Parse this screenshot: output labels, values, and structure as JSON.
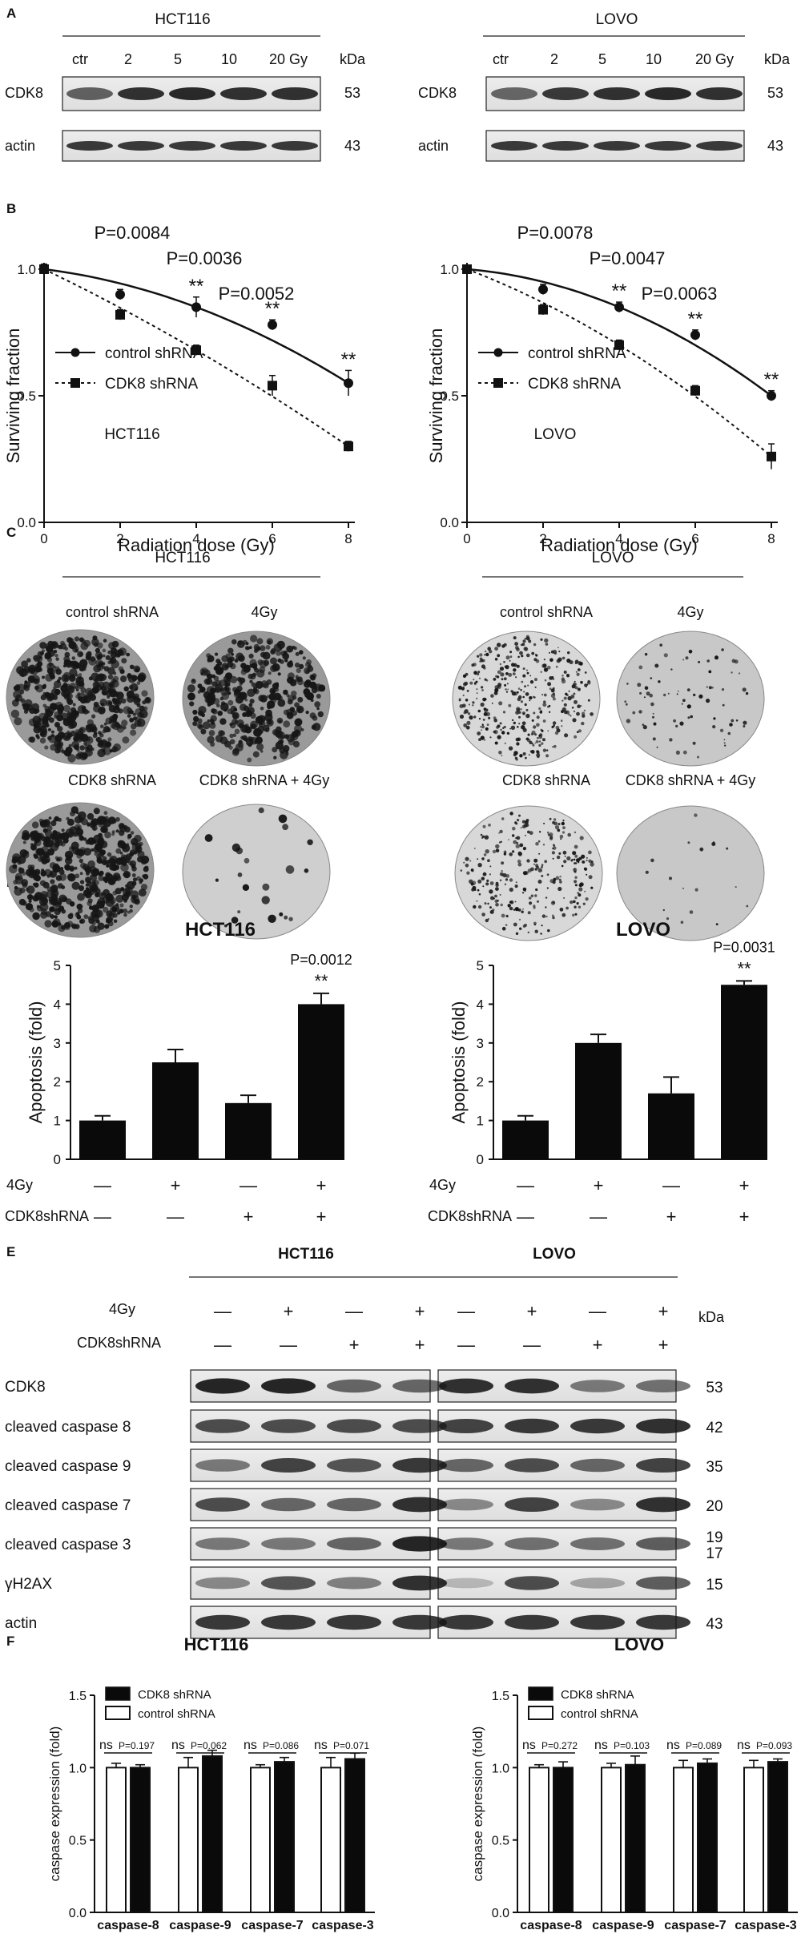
{
  "panel_labels": [
    "A",
    "B",
    "C",
    "D",
    "E",
    "F"
  ],
  "blot_A": {
    "left": {
      "cell": "HCT116",
      "doses": [
        "ctr",
        "2",
        "5",
        "10",
        "20 Gy"
      ],
      "kda_header": "kDa",
      "rows": [
        {
          "label": "CDK8",
          "kda": "53"
        },
        {
          "label": "actin",
          "kda": "43"
        }
      ]
    },
    "right": {
      "cell": "LOVO",
      "doses": [
        "ctr",
        "2",
        "5",
        "10",
        "20 Gy"
      ],
      "kda_header": "kDa",
      "rows": [
        {
          "label": "CDK8",
          "kda": "53"
        },
        {
          "label": "actin",
          "kda": "43"
        }
      ]
    },
    "band_intensity": {
      "left": {
        "CDK8": [
          0.55,
          0.85,
          0.9,
          0.85,
          0.85
        ],
        "actin": [
          0.8,
          0.8,
          0.8,
          0.8,
          0.8
        ]
      },
      "right": {
        "CDK8": [
          0.5,
          0.8,
          0.85,
          0.9,
          0.85
        ],
        "actin": [
          0.8,
          0.8,
          0.8,
          0.8,
          0.8
        ]
      }
    }
  },
  "chart_data": [
    {
      "type": "line",
      "panel": "B-left",
      "annotation": "HCT116",
      "xlabel": "Radiation dose (Gy)",
      "ylabel": "Surviving fraction",
      "xlim": [
        0,
        8
      ],
      "ylim": [
        0,
        1.0
      ],
      "xticks": [
        "0",
        "2",
        "4",
        "6",
        "8"
      ],
      "yticks": [
        "0.0",
        "0.5",
        "1.0"
      ],
      "legend_position": "left",
      "series": [
        {
          "name": "control shRNA",
          "x": [
            0,
            2,
            4,
            6,
            8
          ],
          "y": [
            1.0,
            0.9,
            0.85,
            0.78,
            0.55
          ],
          "err": [
            0.02,
            0.02,
            0.04,
            0.02,
            0.05
          ],
          "marker": "circle",
          "style": "solid"
        },
        {
          "name": "CDK8 shRNA",
          "x": [
            0,
            2,
            4,
            6,
            8
          ],
          "y": [
            1.0,
            0.82,
            0.68,
            0.54,
            0.3
          ],
          "err": [
            0.02,
            0.02,
            0.02,
            0.04,
            0.02
          ],
          "marker": "square",
          "style": "dashed"
        }
      ],
      "stars": [
        {
          "x": 4,
          "text": "**"
        },
        {
          "x": 6,
          "text": "**"
        },
        {
          "x": 8,
          "text": "**"
        }
      ],
      "pvalues": [
        "P=0.0084",
        "P=0.0036",
        "P=0.0052"
      ]
    },
    {
      "type": "line",
      "panel": "B-right",
      "annotation": "LOVO",
      "xlabel": "Radiation dose (Gy)",
      "ylabel": "Surviving fraction",
      "xlim": [
        0,
        8
      ],
      "ylim": [
        0,
        1.0
      ],
      "xticks": [
        "0",
        "2",
        "4",
        "6",
        "8"
      ],
      "yticks": [
        "0.0",
        "0.5",
        "1.0"
      ],
      "legend_position": "left",
      "series": [
        {
          "name": "control shRNA",
          "x": [
            0,
            2,
            4,
            6,
            8
          ],
          "y": [
            1.0,
            0.92,
            0.85,
            0.74,
            0.5
          ],
          "err": [
            0.01,
            0.02,
            0.02,
            0.02,
            0.02
          ],
          "marker": "circle",
          "style": "solid"
        },
        {
          "name": "CDK8 shRNA",
          "x": [
            0,
            2,
            4,
            6,
            8
          ],
          "y": [
            1.0,
            0.84,
            0.7,
            0.52,
            0.26
          ],
          "err": [
            0.01,
            0.02,
            0.02,
            0.02,
            0.05
          ],
          "marker": "square",
          "style": "dashed"
        }
      ],
      "stars": [
        {
          "x": 4,
          "text": "**"
        },
        {
          "x": 6,
          "text": "**"
        },
        {
          "x": 8,
          "text": "**"
        }
      ],
      "pvalues": [
        "P=0.0078",
        "P=0.0047",
        "P=0.0063"
      ]
    },
    {
      "type": "bar",
      "panel": "D-left",
      "title": "HCT116",
      "ylabel": "Apoptosis (fold)",
      "ylim": [
        0,
        5
      ],
      "yticks": [
        "0",
        "1",
        "2",
        "3",
        "4",
        "5"
      ],
      "values": [
        1.0,
        2.5,
        1.45,
        4.0
      ],
      "err": [
        0.12,
        0.33,
        0.2,
        0.28
      ],
      "row_labels": [
        "4Gy",
        "CDK8shRNA"
      ],
      "signs": [
        [
          "—",
          "+",
          "—",
          "+"
        ],
        [
          "—",
          "—",
          "+",
          "+"
        ]
      ],
      "sig": {
        "bar": 3,
        "text": "**",
        "p": "P=0.0012"
      }
    },
    {
      "type": "bar",
      "panel": "D-right",
      "title": "LOVO",
      "ylabel": "Apoptosis (fold)",
      "ylim": [
        0,
        5
      ],
      "yticks": [
        "0",
        "1",
        "2",
        "3",
        "4",
        "5"
      ],
      "values": [
        1.0,
        3.0,
        1.7,
        4.5
      ],
      "err": [
        0.12,
        0.22,
        0.42,
        0.1
      ],
      "row_labels": [
        "4Gy",
        "CDK8shRNA"
      ],
      "signs": [
        [
          "—",
          "+",
          "—",
          "+"
        ],
        [
          "—",
          "—",
          "+",
          "+"
        ]
      ],
      "sig": {
        "bar": 3,
        "text": "**",
        "p": "P=0.0031"
      }
    },
    {
      "type": "bar",
      "panel": "F-left",
      "title": "HCT116",
      "ylabel": "caspase expression (fold)",
      "ylim": [
        0,
        1.5
      ],
      "yticks": [
        "0.0",
        "0.5",
        "1.0",
        "1.5"
      ],
      "categories": [
        "caspase-8",
        "caspase-9",
        "caspase-7",
        "caspase-3"
      ],
      "series": [
        {
          "name": "control shRNA",
          "values": [
            1.0,
            1.0,
            1.0,
            1.0
          ],
          "err": [
            0.03,
            0.07,
            0.02,
            0.07
          ]
        },
        {
          "name": "CDK8 shRNA",
          "values": [
            1.0,
            1.08,
            1.04,
            1.06
          ],
          "err": [
            0.02,
            0.04,
            0.03,
            0.04
          ]
        }
      ],
      "ns_labels": [
        "ns",
        "ns",
        "ns",
        "ns"
      ],
      "pvalues": [
        "P=0.197",
        "P=0.062",
        "P=0.086",
        "P=0.071"
      ]
    },
    {
      "type": "bar",
      "panel": "F-right",
      "title": "LOVO",
      "ylabel": "caspase expression (fold)",
      "ylim": [
        0,
        1.5
      ],
      "yticks": [
        "0.0",
        "0.5",
        "1.0",
        "1.5"
      ],
      "categories": [
        "caspase-8",
        "caspase-9",
        "caspase-7",
        "caspase-3"
      ],
      "series": [
        {
          "name": "control shRNA",
          "values": [
            1.0,
            1.0,
            1.0,
            1.0
          ],
          "err": [
            0.02,
            0.03,
            0.05,
            0.05
          ]
        },
        {
          "name": "CDK8 shRNA",
          "values": [
            1.0,
            1.02,
            1.03,
            1.04
          ],
          "err": [
            0.04,
            0.06,
            0.03,
            0.02
          ]
        }
      ],
      "ns_labels": [
        "ns",
        "ns",
        "ns",
        "ns"
      ],
      "pvalues": [
        "P=0.272",
        "P=0.103",
        "P=0.089",
        "P=0.093"
      ]
    }
  ],
  "colony_C": {
    "left": {
      "cell": "HCT116",
      "labels": [
        "control shRNA",
        "4Gy",
        "CDK8 shRNA",
        "CDK8 shRNA + 4Gy"
      ],
      "density": [
        0.95,
        0.7,
        0.92,
        0.03
      ],
      "tone": "dark"
    },
    "right": {
      "cell": "LOVO",
      "labels": [
        "control shRNA",
        "4Gy",
        "CDK8 shRNA",
        "CDK8 shRNA + 4Gy"
      ],
      "density": [
        0.6,
        0.12,
        0.45,
        0.02
      ],
      "tone": "light"
    }
  },
  "blot_E": {
    "cells": [
      "HCT116",
      "LOVO"
    ],
    "row_4gy": "4Gy",
    "row_sh": "CDK8shRNA",
    "signs_4gy": [
      "—",
      "+",
      "—",
      "+",
      "—",
      "+",
      "—",
      "+"
    ],
    "signs_sh": [
      "—",
      "—",
      "+",
      "+",
      "—",
      "—",
      "+",
      "+"
    ],
    "kda_header": "kDa",
    "rows": [
      {
        "label": "CDK8",
        "kda": "53"
      },
      {
        "label": "cleaved caspase 8",
        "kda": "42"
      },
      {
        "label": "cleaved caspase 9",
        "kda": "35"
      },
      {
        "label": "cleaved caspase 7",
        "kda": "20"
      },
      {
        "label": "cleaved caspase 3",
        "kda": "19",
        "kda2": "17"
      },
      {
        "label": "γH2AX",
        "kda": "15"
      },
      {
        "label": "actin",
        "kda": "43"
      }
    ],
    "band_intensity": [
      [
        0.9,
        0.9,
        0.55,
        0.55,
        0.85,
        0.85,
        0.45,
        0.5
      ],
      [
        0.7,
        0.7,
        0.7,
        0.7,
        0.75,
        0.8,
        0.8,
        0.85
      ],
      [
        0.45,
        0.75,
        0.65,
        0.8,
        0.55,
        0.7,
        0.55,
        0.75
      ],
      [
        0.7,
        0.55,
        0.55,
        0.85,
        0.35,
        0.75,
        0.35,
        0.85
      ],
      [
        0.45,
        0.45,
        0.55,
        0.9,
        0.45,
        0.5,
        0.5,
        0.6
      ],
      [
        0.35,
        0.65,
        0.4,
        0.85,
        0.1,
        0.7,
        0.2,
        0.6
      ],
      [
        0.8,
        0.8,
        0.8,
        0.8,
        0.8,
        0.8,
        0.8,
        0.8
      ]
    ]
  }
}
